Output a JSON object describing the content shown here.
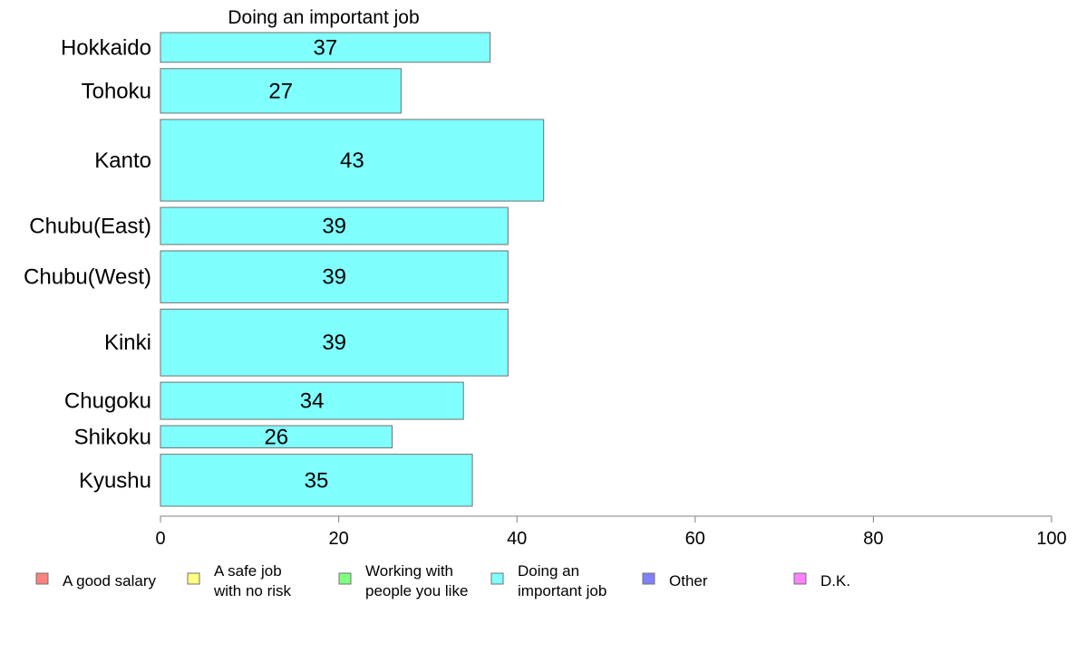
{
  "chart_data": {
    "type": "bar",
    "orientation": "horizontal",
    "title": "Doing an important job",
    "categories": [
      "Hokkaido",
      "Tohoku",
      "Kanto",
      "Chubu(East)",
      "Chubu(West)",
      "Kinki",
      "Chugoku",
      "Shikoku",
      "Kyushu"
    ],
    "series": [
      {
        "name": "Doing an important job",
        "values": [
          37,
          27,
          43,
          39,
          39,
          39,
          34,
          26,
          35
        ],
        "color": "#80ffff"
      }
    ],
    "bar_weights": [
      4,
      6,
      11,
      5,
      7,
      9,
      5,
      3,
      7
    ],
    "xlim": [
      0,
      100
    ],
    "xticks": [
      0,
      20,
      40,
      60,
      80,
      100
    ],
    "xlabel": "",
    "ylabel": "",
    "grid": false,
    "legend_position": "bottom",
    "legend": [
      {
        "lines": [
          "A good salary"
        ],
        "color": "#ff8080"
      },
      {
        "lines": [
          "A safe job",
          "with no risk"
        ],
        "color": "#ffff80"
      },
      {
        "lines": [
          "Working with",
          "people you like"
        ],
        "color": "#80ff80"
      },
      {
        "lines": [
          "Doing an",
          "important job"
        ],
        "color": "#80ffff"
      },
      {
        "lines": [
          "Other"
        ],
        "color": "#8080ff"
      },
      {
        "lines": [
          "D.K."
        ],
        "color": "#ff80ff"
      }
    ]
  }
}
